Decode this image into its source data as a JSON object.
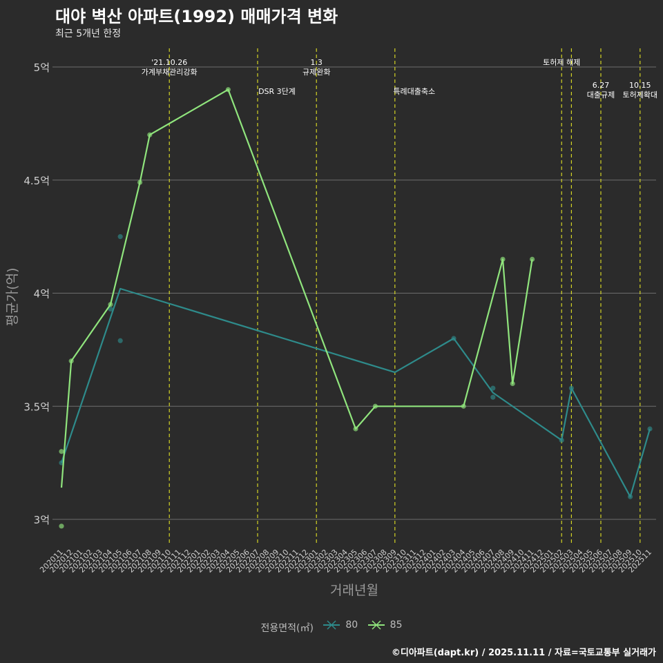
{
  "title": "대야 벽산 아파트(1992) 매매가격 변화",
  "subtitle": "최근 5개년 한정",
  "caption": "©디아파트(dapt.kr) / 2025.11.11 / 자료=국토교통부 실거래가",
  "colors": {
    "s80": "#2e8b8b",
    "s85": "#90e57d",
    "policy": "#d4d424",
    "grid": "#6e6e6e",
    "bg": "#2b2b2b"
  },
  "chart_data": {
    "type": "line",
    "xlabel": "거래년월",
    "ylabel": "평균가(억)",
    "ylim": [
      2.88,
      5.08
    ],
    "yticks": [
      3,
      3.5,
      4,
      4.5,
      5
    ],
    "ytick_labels": [
      "3억",
      "3.5억",
      "4억",
      "4.5억",
      "5억"
    ],
    "categories": [
      "202011",
      "202012",
      "202101",
      "202102",
      "202103",
      "202104",
      "202105",
      "202106",
      "202107",
      "202108",
      "202109",
      "202110",
      "202111",
      "202112",
      "202201",
      "202202",
      "202203",
      "202204",
      "202205",
      "202206",
      "202207",
      "202208",
      "202209",
      "202210",
      "202211",
      "202212",
      "202301",
      "202302",
      "202303",
      "202304",
      "202305",
      "202306",
      "202307",
      "202308",
      "202309",
      "202310",
      "202311",
      "202312",
      "202401",
      "202402",
      "202403",
      "202404",
      "202405",
      "202406",
      "202407",
      "202408",
      "202409",
      "202410",
      "202411",
      "202412",
      "202501",
      "202502",
      "202503",
      "202504",
      "202505",
      "202506",
      "202507",
      "202508",
      "202509",
      "202510",
      "202511"
    ],
    "legend_title": "전용면적(㎡)",
    "series": [
      {
        "name": "80",
        "line": [
          [
            0,
            3.25
          ],
          [
            6,
            4.02
          ],
          [
            34,
            3.65
          ],
          [
            40,
            3.8
          ],
          [
            44,
            3.56
          ],
          [
            51,
            3.35
          ],
          [
            52,
            3.58
          ],
          [
            58,
            3.1
          ],
          [
            60,
            3.4
          ]
        ],
        "points": [
          [
            0,
            3.25
          ],
          [
            5,
            3.93
          ],
          [
            6,
            4.25
          ],
          [
            6,
            3.79
          ],
          [
            40,
            3.8
          ],
          [
            44,
            3.58
          ],
          [
            44,
            3.54
          ],
          [
            51,
            3.35
          ],
          [
            52,
            3.58
          ],
          [
            58,
            3.1
          ],
          [
            60,
            3.4
          ]
        ]
      },
      {
        "name": "85",
        "line": [
          [
            0,
            3.14
          ],
          [
            1,
            3.7
          ],
          [
            5,
            3.95
          ],
          [
            8,
            4.49
          ],
          [
            9,
            4.7
          ],
          [
            17,
            4.9
          ],
          [
            30,
            3.4
          ],
          [
            32,
            3.5
          ],
          [
            41,
            3.5
          ],
          [
            45,
            4.15
          ],
          [
            46,
            3.6
          ],
          [
            48,
            4.15
          ]
        ],
        "points": [
          [
            0,
            3.3
          ],
          [
            0,
            2.97
          ],
          [
            1,
            3.7
          ],
          [
            5,
            3.95
          ],
          [
            8,
            4.49
          ],
          [
            9,
            4.7
          ],
          [
            17,
            4.9
          ],
          [
            30,
            3.4
          ],
          [
            32,
            3.5
          ],
          [
            41,
            3.5
          ],
          [
            45,
            4.15
          ],
          [
            46,
            3.6
          ],
          [
            48,
            4.15
          ]
        ]
      }
    ],
    "policy_events": [
      {
        "x": 11.0,
        "label_lines": [
          "'21.10.26",
          "가계부채관리강화"
        ],
        "tier": 1
      },
      {
        "x": 20.0,
        "label_lines": [
          "DSR 3단계"
        ],
        "tier": 2
      },
      {
        "x": 26.0,
        "label_lines": [
          "1.3",
          "규제완화"
        ],
        "tier": 1
      },
      {
        "x": 34.0,
        "label_lines": [
          "특례대출축소"
        ],
        "tier": 2
      },
      {
        "x": 51.0,
        "label_lines": [
          "토허제 해제"
        ],
        "tier": 1
      },
      {
        "x": 52.0,
        "label_lines": [],
        "tier": 0
      },
      {
        "x": 55.0,
        "label_lines": [
          "6.27",
          "대출규제"
        ],
        "tier": 2
      },
      {
        "x": 59.0,
        "label_lines": [
          "10.15",
          "토허제확대"
        ],
        "tier": 2
      }
    ]
  }
}
